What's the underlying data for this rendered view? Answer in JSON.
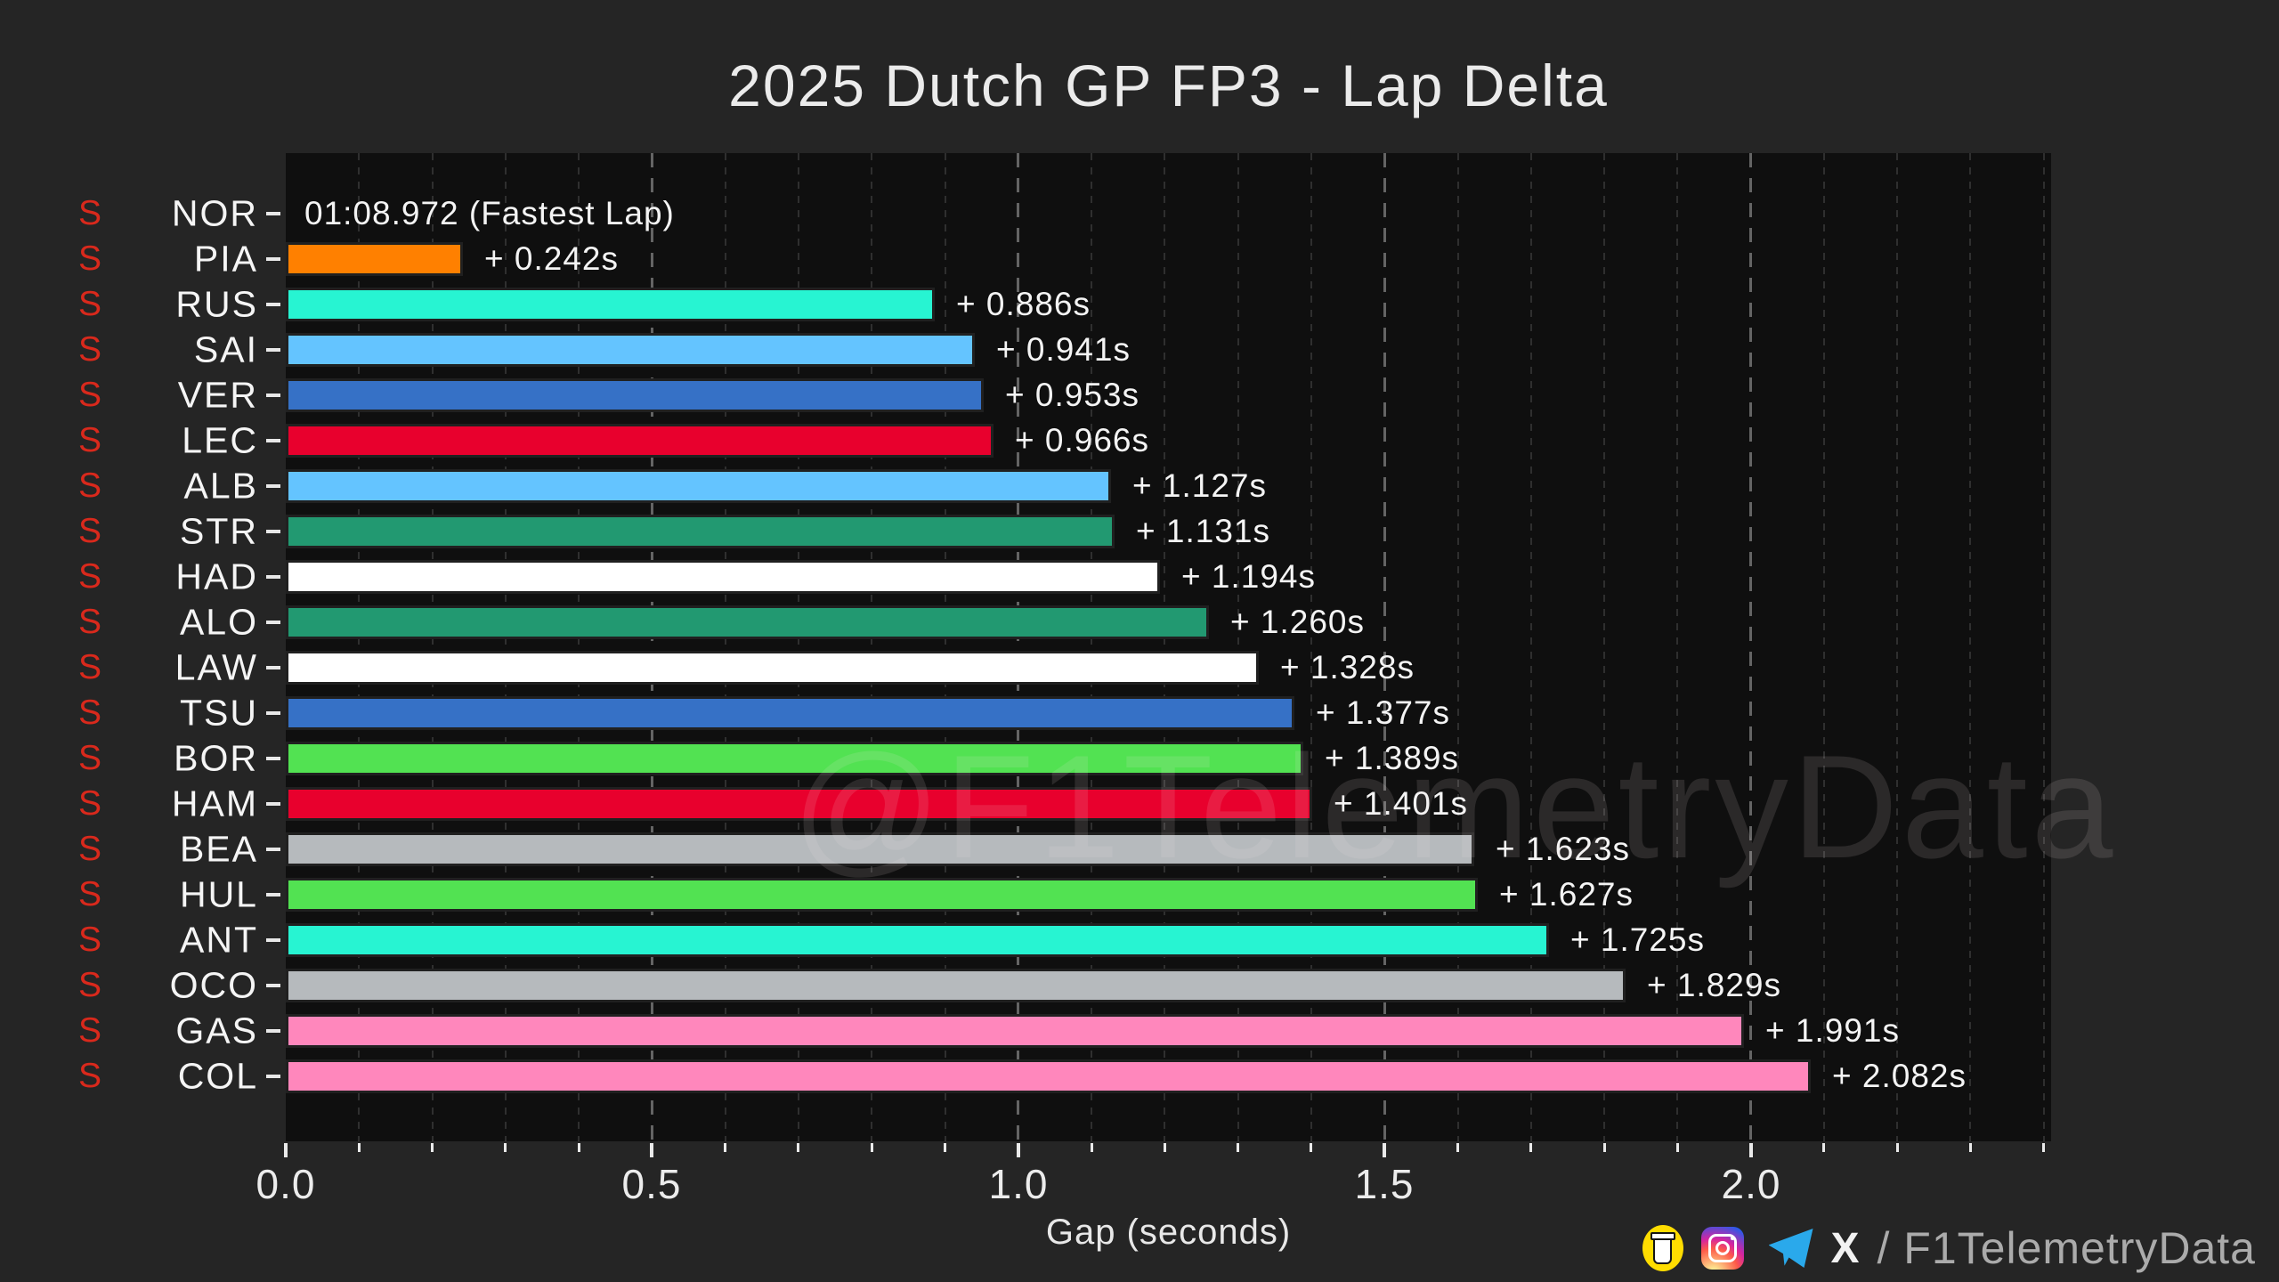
{
  "title": "2025 Dutch GP FP3 - Lap Delta",
  "watermark": "@F1TelemetryData",
  "footer": {
    "icons": [
      "buymeacoffee-icon",
      "instagram-icon",
      "telegram-icon"
    ],
    "x_label": "X",
    "handle": "/ F1TelemetryData"
  },
  "colors": {
    "background": "#252525",
    "plot_background": "#0f0f0f",
    "tyre_soft": "#d9291c",
    "text": "#f5f5f5",
    "grid_minor": "#2f2f2f",
    "grid_major": "#646464"
  },
  "chart_data": {
    "type": "bar",
    "orientation": "horizontal",
    "title": "2025 Dutch GP FP3 - Lap Delta",
    "xlabel": "Gap (seconds)",
    "xlim": [
      0,
      2.41
    ],
    "x_major_ticks": [
      0.0,
      0.5,
      1.0,
      1.5,
      2.0
    ],
    "x_tick_labels": [
      "0.0",
      "0.5",
      "1.0",
      "1.5",
      "2.0"
    ],
    "x_minor_step": 0.1,
    "grid": "vertical dashed, minor every 0.1s, major every 0.5s",
    "legend": "none",
    "fastest_lap_time": "01:08.972",
    "categories": [
      "NOR",
      "PIA",
      "RUS",
      "SAI",
      "VER",
      "LEC",
      "ALB",
      "STR",
      "HAD",
      "ALO",
      "LAW",
      "TSU",
      "BOR",
      "HAM",
      "BEA",
      "HUL",
      "ANT",
      "OCO",
      "GAS",
      "COL"
    ],
    "tyre_compounds": [
      "S",
      "S",
      "S",
      "S",
      "S",
      "S",
      "S",
      "S",
      "S",
      "S",
      "S",
      "S",
      "S",
      "S",
      "S",
      "S",
      "S",
      "S",
      "S",
      "S"
    ],
    "values": [
      0,
      0.242,
      0.886,
      0.941,
      0.953,
      0.966,
      1.127,
      1.131,
      1.194,
      1.26,
      1.328,
      1.377,
      1.389,
      1.401,
      1.623,
      1.627,
      1.725,
      1.829,
      1.991,
      2.082
    ],
    "bar_labels": [
      "01:08.972 (Fastest Lap)",
      "+ 0.242s",
      "+ 0.886s",
      "+ 0.941s",
      "+ 0.953s",
      "+ 0.966s",
      "+ 1.127s",
      "+ 1.131s",
      "+ 1.194s",
      "+ 1.260s",
      "+ 1.328s",
      "+ 1.377s",
      "+ 1.389s",
      "+ 1.401s",
      "+ 1.623s",
      "+ 1.627s",
      "+ 1.725s",
      "+ 1.829s",
      "+ 1.991s",
      "+ 2.082s"
    ],
    "bar_colors": [
      "#ff8000",
      "#ff8000",
      "#27f4d2",
      "#64c4ff",
      "#3671c6",
      "#e8002d",
      "#64c4ff",
      "#229971",
      "#ffffff",
      "#229971",
      "#ffffff",
      "#3671c6",
      "#52e252",
      "#e8002d",
      "#b6babd",
      "#52e252",
      "#27f4d2",
      "#b6babd",
      "#ff87bc",
      "#ff87bc"
    ]
  }
}
